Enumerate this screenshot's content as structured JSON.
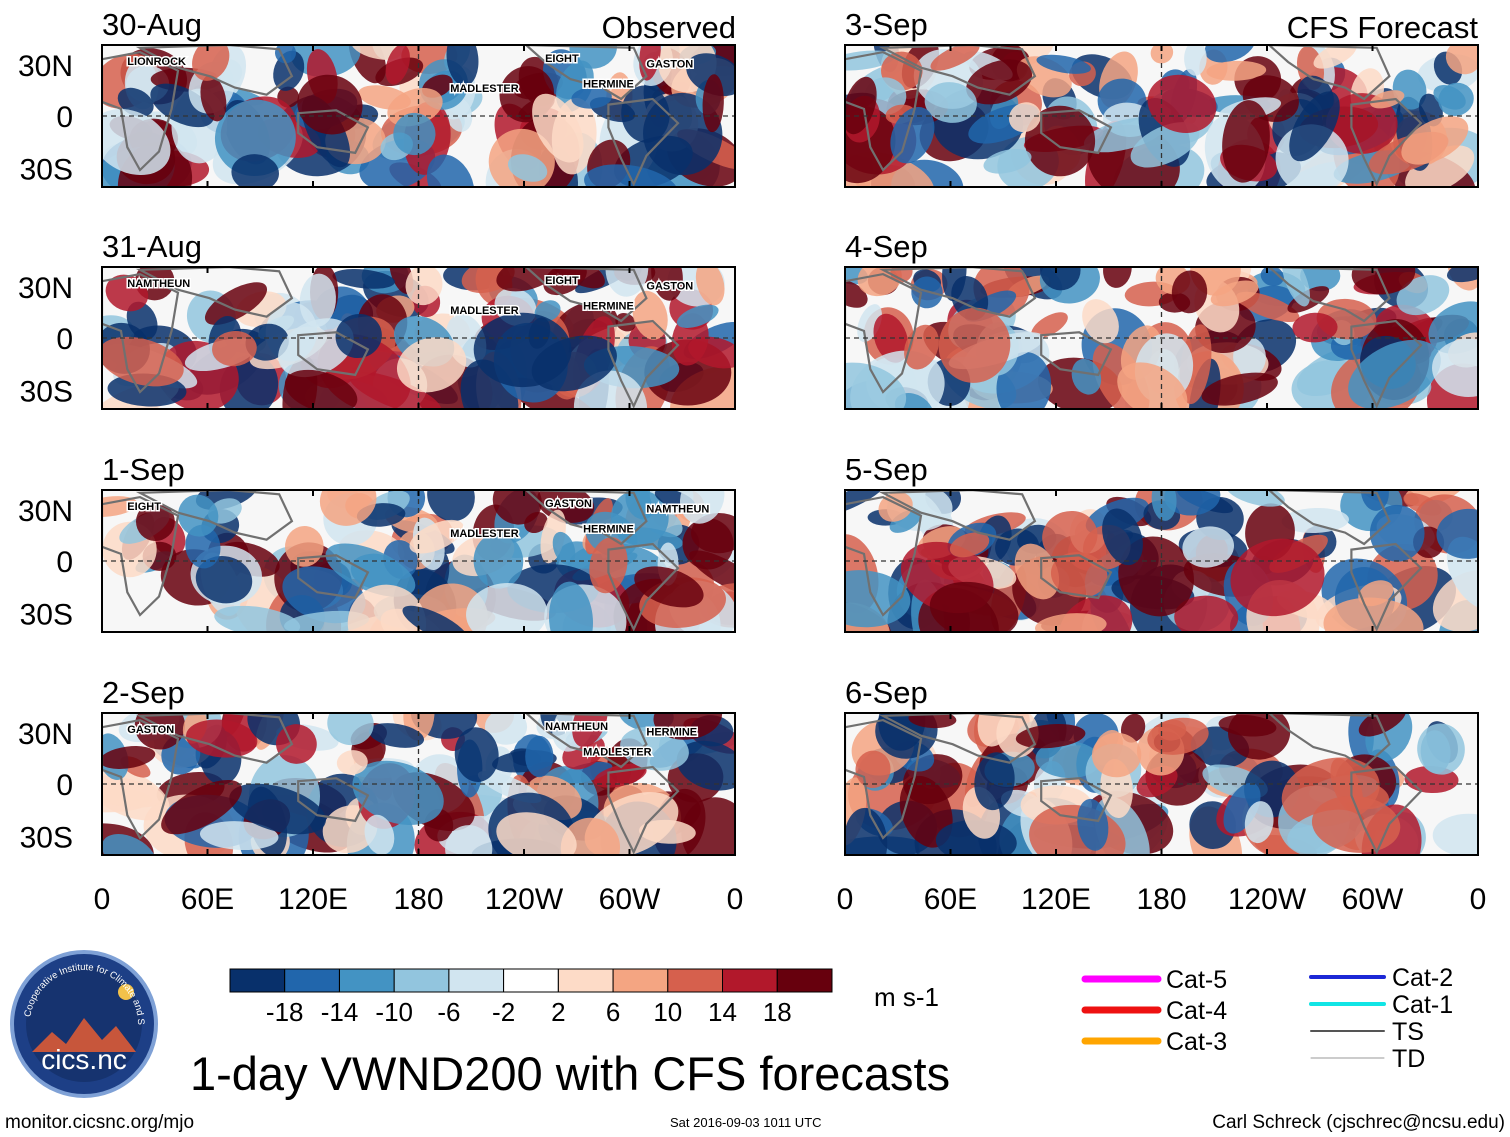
{
  "title": "1-day VWND200 with CFS forecasts",
  "left_header": "Observed",
  "right_header": "CFS Forecast",
  "units": "m s-1",
  "website": "monitor.cicsnc.org/mjo",
  "timestamp": "Sat 2016-09-03 1011 UTC",
  "author": "Carl Schreck (cjschrec@ncsu.edu)",
  "logo": {
    "text": "cics.nc",
    "ring_text": "Cooperative Institute for Climate and Satellites"
  },
  "colors": {
    "map_outline": "#707070",
    "negative_strong": "#08306b",
    "positive_strong": "#67000d"
  },
  "chart_data": {
    "type": "heatmap",
    "variable": "VWND200",
    "x_ticks": [
      "0",
      "60E",
      "120E",
      "180",
      "120W",
      "60W",
      "0"
    ],
    "y_ticks": [
      "30N",
      "0",
      "30S"
    ],
    "panels": [
      {
        "date": "30-Aug",
        "kind": "observed",
        "storms": [
          {
            "name": "LIONROCK"
          },
          {
            "name": "EIGHT"
          },
          {
            "name": "GASTON"
          },
          {
            "name": "HERMINE"
          },
          {
            "name": "MADLESTER"
          }
        ]
      },
      {
        "date": "31-Aug",
        "kind": "observed",
        "storms": [
          {
            "name": "NAMTHEUN"
          },
          {
            "name": "EIGHT"
          },
          {
            "name": "GASTON"
          },
          {
            "name": "HERMINE"
          },
          {
            "name": "MADLESTER"
          }
        ]
      },
      {
        "date": "1-Sep",
        "kind": "observed",
        "storms": [
          {
            "name": "EIGHT"
          },
          {
            "name": "GASTON"
          },
          {
            "name": "NAMTHEUN"
          },
          {
            "name": "HERMINE"
          },
          {
            "name": "MADLESTER"
          }
        ]
      },
      {
        "date": "2-Sep",
        "kind": "observed",
        "storms": [
          {
            "name": "GASTON"
          },
          {
            "name": "NAMTHEUN"
          },
          {
            "name": "HERMINE"
          },
          {
            "name": "MADLESTER"
          }
        ]
      },
      {
        "date": "3-Sep",
        "kind": "forecast",
        "storms": []
      },
      {
        "date": "4-Sep",
        "kind": "forecast",
        "storms": []
      },
      {
        "date": "5-Sep",
        "kind": "forecast",
        "storms": []
      },
      {
        "date": "6-Sep",
        "kind": "forecast",
        "storms": []
      }
    ],
    "colorbar": {
      "levels": [
        "-18",
        "-14",
        "-10",
        "-6",
        "-2",
        "2",
        "6",
        "10",
        "14",
        "18"
      ],
      "colors": [
        "#08306b",
        "#2166ac",
        "#4393c3",
        "#92c5de",
        "#d1e5f0",
        "#ffffff",
        "#fddbc7",
        "#f4a582",
        "#d6604d",
        "#b2182b",
        "#67000d"
      ]
    },
    "legend": [
      {
        "label": "Cat-5",
        "color": "#ff00ff"
      },
      {
        "label": "Cat-4",
        "color": "#ee1111"
      },
      {
        "label": "Cat-3",
        "color": "#ffa500"
      },
      {
        "label": "Cat-2",
        "color": "#1c28d6"
      },
      {
        "label": "Cat-1",
        "color": "#11e5e5"
      },
      {
        "label": "TS",
        "color": "#555555"
      },
      {
        "label": "TD",
        "color": "#999999"
      }
    ]
  }
}
